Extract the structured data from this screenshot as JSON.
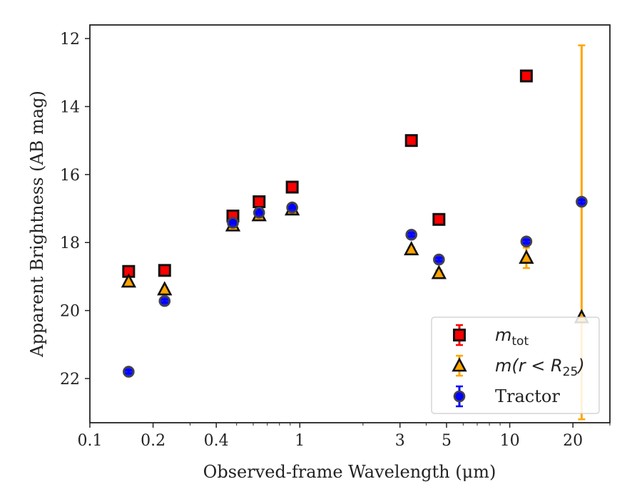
{
  "chart_data": {
    "type": "scatter",
    "xlabel": "Observed-frame Wavelength (μm)",
    "ylabel": "Apparent Brightness (AB mag)",
    "xscale": "log",
    "xlim": [
      0.1,
      30
    ],
    "ylim": [
      23.3,
      11.6
    ],
    "y_inverted": true,
    "grid": false,
    "legend_position": "lower-right",
    "x_ticks": [
      {
        "value": 0.1,
        "label": "0.1"
      },
      {
        "value": 0.2,
        "label": "0.2"
      },
      {
        "value": 0.4,
        "label": "0.4"
      },
      {
        "value": 1,
        "label": "1"
      },
      {
        "value": 3,
        "label": "3"
      },
      {
        "value": 5,
        "label": "5"
      },
      {
        "value": 10,
        "label": "10"
      },
      {
        "value": 20,
        "label": "20"
      }
    ],
    "y_ticks": [
      {
        "value": 12,
        "label": "12"
      },
      {
        "value": 14,
        "label": "14"
      },
      {
        "value": 16,
        "label": "16"
      },
      {
        "value": 18,
        "label": "18"
      },
      {
        "value": 20,
        "label": "20"
      },
      {
        "value": 22,
        "label": "22"
      }
    ],
    "series": [
      {
        "name_italic": "m",
        "name_sub": "tot",
        "marker": "square",
        "color": "#ff0000",
        "edge": "#111111",
        "points": [
          {
            "x": 0.153,
            "y": 18.85,
            "err": 0.08
          },
          {
            "x": 0.227,
            "y": 18.82,
            "err": 0.05
          },
          {
            "x": 0.48,
            "y": 17.22,
            "err": 0.02
          },
          {
            "x": 0.64,
            "y": 16.8,
            "err": 0.02
          },
          {
            "x": 0.92,
            "y": 16.37,
            "err": 0.02
          },
          {
            "x": 3.4,
            "y": 15.0,
            "err": 0.03
          },
          {
            "x": 4.6,
            "y": 17.32,
            "err": 0.05
          },
          {
            "x": 12.0,
            "y": 13.1,
            "err": 0.05
          }
        ]
      },
      {
        "name_italic": "m(r < R",
        "name_sub": "25",
        "name_after": ")",
        "marker": "triangle",
        "color": "#ffa500",
        "edge": "#111111",
        "points": [
          {
            "x": 0.153,
            "y": 19.15,
            "err": 0.05
          },
          {
            "x": 0.227,
            "y": 19.38,
            "err": 0.05
          },
          {
            "x": 0.48,
            "y": 17.5,
            "err": 0.02
          },
          {
            "x": 0.64,
            "y": 17.2,
            "err": 0.02
          },
          {
            "x": 0.92,
            "y": 17.03,
            "err": 0.02
          },
          {
            "x": 3.4,
            "y": 18.2,
            "err": 0.05
          },
          {
            "x": 4.6,
            "y": 18.9,
            "err": 0.08
          },
          {
            "x": 12.0,
            "y": 18.45,
            "err": 0.3
          },
          {
            "x": 22.0,
            "y": 20.2,
            "err_low": 8.0,
            "err_high": 3.0
          }
        ]
      },
      {
        "name": "Tractor",
        "marker": "circle",
        "color": "#0000ff",
        "edge": "#444444",
        "points": [
          {
            "x": 0.153,
            "y": 21.8,
            "err": 0.05
          },
          {
            "x": 0.227,
            "y": 19.72,
            "err": 0.05
          },
          {
            "x": 0.48,
            "y": 17.42,
            "err": 0.02
          },
          {
            "x": 0.64,
            "y": 17.12,
            "err": 0.02
          },
          {
            "x": 0.92,
            "y": 16.97,
            "err": 0.02
          },
          {
            "x": 3.4,
            "y": 17.77,
            "err": 0.05
          },
          {
            "x": 4.6,
            "y": 18.5,
            "err": 0.05
          },
          {
            "x": 12.0,
            "y": 17.97,
            "err": 0.05
          },
          {
            "x": 22.0,
            "y": 16.8,
            "err": 0.05
          }
        ]
      }
    ]
  }
}
